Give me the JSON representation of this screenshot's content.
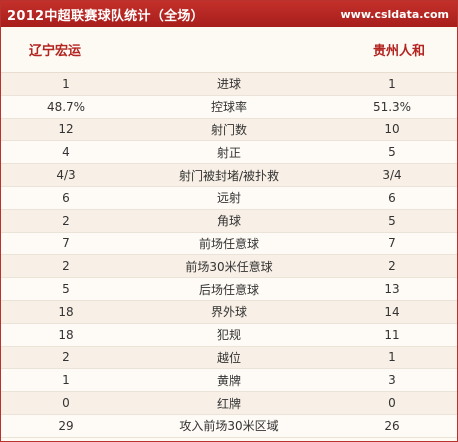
{
  "header": {
    "title": "2012中超联赛球队统计（全场）",
    "site": "www.csldata.com"
  },
  "teams": {
    "left": "辽宁宏运",
    "right": "贵州人和"
  },
  "stats": [
    {
      "left": "1",
      "label": "进球",
      "right": "1"
    },
    {
      "left": "48.7%",
      "label": "控球率",
      "right": "51.3%"
    },
    {
      "left": "12",
      "label": "射门数",
      "right": "10"
    },
    {
      "left": "4",
      "label": "射正",
      "right": "5"
    },
    {
      "left": "4/3",
      "label": "射门被封堵/被扑救",
      "right": "3/4"
    },
    {
      "left": "6",
      "label": "远射",
      "right": "6"
    },
    {
      "left": "2",
      "label": "角球",
      "right": "5"
    },
    {
      "left": "7",
      "label": "前场任意球",
      "right": "7"
    },
    {
      "left": "2",
      "label": "前场30米任意球",
      "right": "2"
    },
    {
      "left": "5",
      "label": "后场任意球",
      "right": "13"
    },
    {
      "left": "18",
      "label": "界外球",
      "right": "14"
    },
    {
      "left": "18",
      "label": "犯规",
      "right": "11"
    },
    {
      "left": "2",
      "label": "越位",
      "right": "1"
    },
    {
      "left": "1",
      "label": "黄牌",
      "right": "3"
    },
    {
      "left": "0",
      "label": "红牌",
      "right": "0"
    },
    {
      "left": "29",
      "label": "攻入前场30米区域",
      "right": "26"
    }
  ],
  "colors": {
    "header_bg": "#b3231f",
    "team_text": "#b3231f",
    "row_odd": "#f8f0e6",
    "row_even": "#fefbf6"
  }
}
